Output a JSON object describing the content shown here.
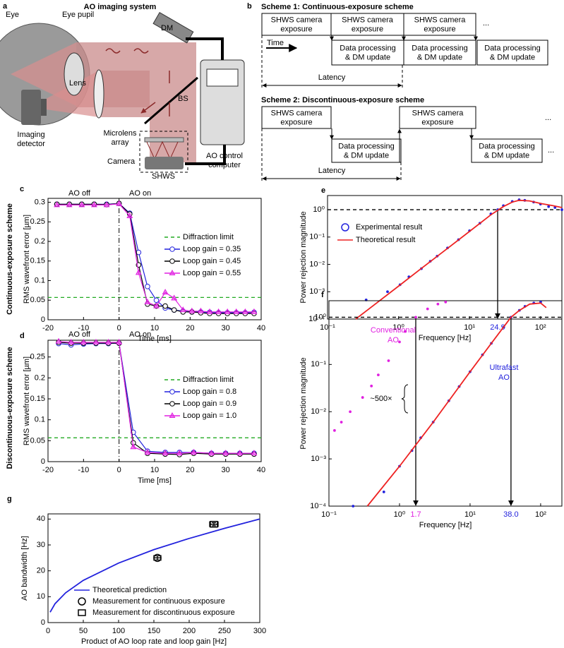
{
  "panel_a": {
    "letter": "a",
    "title": "AO imaging system",
    "eye": "Eye",
    "eye_pupil": "Eye pupil",
    "dm": "DM",
    "lens": "Lens",
    "bs": "BS",
    "detector": [
      "Imaging",
      "detector"
    ],
    "microlens": [
      "Microlens",
      "array"
    ],
    "camera": "Camera",
    "shws": "SHWS",
    "computer": [
      "AO control",
      "computer"
    ]
  },
  "panel_b": {
    "letter": "b",
    "time": "Time",
    "scheme1": {
      "title": "Scheme 1: Continuous-exposure scheme",
      "exposures": [
        [
          "SHWS camera",
          "exposure"
        ],
        [
          "SHWS camera",
          "exposure"
        ],
        [
          "SHWS camera",
          "exposure"
        ]
      ],
      "processing": [
        [
          "Data processing",
          "& DM update"
        ],
        [
          "Data processing",
          "& DM update"
        ],
        [
          "Data processing",
          "& DM update"
        ]
      ],
      "ellipsis": [
        "..."
      ],
      "latency": "Latency"
    },
    "scheme2": {
      "title": "Scheme 2: Discontinuous-exposure scheme",
      "exposures": [
        [
          "SHWS camera",
          "exposure"
        ],
        [
          "SHWS camera",
          "exposure"
        ]
      ],
      "processing": [
        [
          "Data processing",
          "& DM update"
        ],
        [
          "Data processing",
          "& DM update"
        ]
      ],
      "ellipsis": [
        "...",
        "..."
      ],
      "latency": "Latency"
    }
  },
  "row_labels": [
    "Continuous-exposure scheme",
    "Discontinuous-exposure scheme"
  ],
  "chart_data": [
    {
      "type": "line",
      "panel": "c",
      "xlabel": "Time [ms]",
      "ylabel": "RMS wavefront error [µm]",
      "xlim": [
        -20,
        40
      ],
      "xticks": [
        -20,
        -10,
        0,
        10,
        20,
        30,
        40
      ],
      "ylim": [
        0,
        0.31
      ],
      "yticks": [
        0,
        0.05,
        0.1,
        0.15,
        0.2,
        0.25,
        0.3
      ],
      "annotations": [
        {
          "text": [
            "AO off"
          ],
          "color": "#000000"
        },
        {
          "text": [
            "AO on"
          ],
          "color": "#000000"
        }
      ],
      "hlines": [
        {
          "name": "Diffraction limit",
          "value": 0.057,
          "color": "#22aa22",
          "style": "dashed"
        }
      ],
      "vlines": [
        {
          "value": 0,
          "style": "dashdot"
        }
      ],
      "x": [
        -17.5,
        -14,
        -10.5,
        -7,
        -3.5,
        0,
        3,
        5.5,
        8,
        10.5,
        13,
        15.5,
        18,
        20.5,
        23,
        25.5,
        28,
        30.5,
        33,
        35.5,
        38
      ],
      "series": [
        {
          "name": "Loop gain = 0.35",
          "color": "#2222dd",
          "marker": "circle-open",
          "values": [
            0.295,
            0.295,
            0.295,
            0.295,
            0.295,
            0.297,
            0.272,
            0.172,
            0.085,
            0.05,
            0.03,
            0.025,
            0.022,
            0.02,
            0.02,
            0.019,
            0.018,
            0.018,
            0.018,
            0.018,
            0.019
          ]
        },
        {
          "name": "Loop gain = 0.45",
          "color": "#000000",
          "marker": "circle-open",
          "values": [
            0.295,
            0.295,
            0.295,
            0.295,
            0.294,
            0.297,
            0.27,
            0.14,
            0.04,
            0.035,
            0.035,
            0.025,
            0.02,
            0.02,
            0.018,
            0.016,
            0.016,
            0.016,
            0.016,
            0.016,
            0.016
          ]
        },
        {
          "name": "Loop gain = 0.55",
          "color": "#e020e0",
          "marker": "triangle",
          "values": [
            0.293,
            0.293,
            0.293,
            0.293,
            0.293,
            0.296,
            0.265,
            0.12,
            0.045,
            0.035,
            0.07,
            0.055,
            0.025,
            0.022,
            0.022,
            0.02,
            0.02,
            0.02,
            0.02,
            0.02,
            0.02
          ]
        }
      ]
    },
    {
      "type": "line",
      "panel": "d",
      "xlabel": "Time [ms]",
      "ylabel": "RMS wavefront error [µm]",
      "xlim": [
        -20,
        40
      ],
      "xticks": [
        -20,
        -10,
        0,
        10,
        20,
        30,
        40
      ],
      "ylim": [
        0,
        0.29
      ],
      "yticks": [
        0,
        0.05,
        0.1,
        0.15,
        0.2,
        0.25
      ],
      "annotations": [
        {
          "text": [
            "AO off"
          ],
          "color": "#000000"
        },
        {
          "text": [
            "AO on"
          ],
          "color": "#000000"
        }
      ],
      "hlines": [
        {
          "name": "Diffraction limit",
          "value": 0.057,
          "color": "#22aa22",
          "style": "dashed"
        }
      ],
      "vlines": [
        {
          "value": 0,
          "style": "dashdot"
        }
      ],
      "x": [
        -17,
        -13.5,
        -10,
        -6.5,
        -3,
        0,
        4,
        8,
        13,
        17,
        21,
        26,
        30,
        34,
        38
      ],
      "series": [
        {
          "name": "Loop gain = 0.8",
          "color": "#2222dd",
          "marker": "circle-open",
          "values": [
            0.282,
            0.279,
            0.281,
            0.282,
            0.282,
            0.283,
            0.07,
            0.025,
            0.022,
            0.022,
            0.022,
            0.02,
            0.02,
            0.02,
            0.02
          ]
        },
        {
          "name": "Loop gain = 0.9",
          "color": "#000000",
          "marker": "circle-open",
          "values": [
            0.285,
            0.283,
            0.283,
            0.283,
            0.283,
            0.283,
            0.045,
            0.02,
            0.018,
            0.017,
            0.02,
            0.018,
            0.018,
            0.018,
            0.018
          ]
        },
        {
          "name": "Loop gain = 1.0",
          "color": "#e020e0",
          "marker": "triangle",
          "values": [
            0.287,
            0.285,
            0.285,
            0.285,
            0.285,
            0.285,
            0.035,
            0.022,
            0.02,
            0.02,
            0.022,
            0.02,
            0.02,
            0.02,
            0.02
          ]
        }
      ]
    },
    {
      "type": "scatter",
      "panel": "e",
      "xlabel": "Frequency [Hz]",
      "ylabel": "Power rejection magnitude",
      "xlog": true,
      "ylog": true,
      "xlim": [
        0.1,
        200
      ],
      "ylim": [
        0.0001,
        3.3
      ],
      "xticks": [
        {
          "value": 0.1,
          "label": "10⁻¹"
        },
        {
          "value": 1,
          "label": "10⁰"
        },
        {
          "value": 10,
          "label": "10¹"
        },
        {
          "value": 100,
          "label": "10²"
        }
      ],
      "yticks": [
        {
          "value": 0.0001,
          "label": "10⁻⁴"
        },
        {
          "value": 0.001,
          "label": "10⁻³"
        },
        {
          "value": 0.01,
          "label": "10⁻²"
        },
        {
          "value": 0.1,
          "label": "10⁻¹"
        },
        {
          "value": 1,
          "label": "10⁰"
        }
      ],
      "hlines": [
        {
          "value": 1,
          "color": "#000000",
          "style": "dashed"
        }
      ],
      "arrows": [
        {
          "value": 24.9,
          "color": "#2222dd"
        }
      ],
      "series": [
        {
          "name": "Experimental result",
          "color": "#2222dd",
          "marker": "dot",
          "x": [
            0.35,
            0.7,
            1.05,
            1.4,
            2.1,
            2.8,
            3.5,
            4.9,
            7,
            10,
            14,
            20,
            25,
            30,
            40,
            50,
            60,
            80,
            100,
            130,
            160,
            200
          ],
          "values": [
            0.0005,
            0.001,
            0.0018,
            0.0035,
            0.007,
            0.013,
            0.02,
            0.04,
            0.08,
            0.17,
            0.32,
            0.7,
            1.0,
            1.4,
            2.0,
            2.3,
            2.2,
            1.9,
            1.6,
            1.3,
            1.2,
            1.0
          ]
        },
        {
          "name": "Theoretical result",
          "color": "#ee2222",
          "line": true,
          "x": [
            0.25,
            0.5,
            1,
            2,
            5,
            10,
            20,
            30,
            40,
            50,
            70,
            100,
            150,
            200
          ],
          "values": [
            0.0001,
            0.0004,
            0.0016,
            0.0065,
            0.04,
            0.16,
            0.65,
            1.3,
            1.9,
            2.2,
            2.1,
            1.7,
            1.4,
            1.2
          ]
        }
      ]
    },
    {
      "type": "scatter",
      "panel": "f",
      "xlabel": "Frequency [Hz]",
      "ylabel": "Power rejection magnitude",
      "xlog": true,
      "ylog": true,
      "xlim": [
        0.1,
        200
      ],
      "ylim": [
        0.0001,
        2.24
      ],
      "xticks": [
        {
          "value": 0.1,
          "label": "10⁻¹"
        },
        {
          "value": 1,
          "label": "10⁰"
        },
        {
          "value": 10,
          "label": "10¹"
        },
        {
          "value": 100,
          "label": "10²"
        }
      ],
      "yticks": [
        {
          "value": 0.0001,
          "label": "10⁻⁴"
        },
        {
          "value": 0.001,
          "label": "10⁻³"
        },
        {
          "value": 0.01,
          "label": "10⁻²"
        },
        {
          "value": 0.1,
          "label": "10⁻¹"
        },
        {
          "value": 1,
          "label": "10⁰"
        }
      ],
      "hlines": [
        {
          "value": 1,
          "color": "#000000",
          "style": "dashed"
        }
      ],
      "arrows": [
        {
          "value": 1.7,
          "color": "#e020e0"
        },
        {
          "value": 38,
          "label": "38.0",
          "color": "#2222dd"
        }
      ],
      "annotations": [
        {
          "text": [
            "Conventional",
            "AO"
          ],
          "color": "#e020e0"
        },
        {
          "text": [
            "Ultrafast",
            "AO"
          ],
          "color": "#2222dd"
        },
        {
          "text": [
            "~500×"
          ],
          "color": "#000000"
        }
      ],
      "series": [
        {
          "color": "#e020e0",
          "marker": "dot",
          "x": [
            0.12,
            0.15,
            0.2,
            0.3,
            0.4,
            0.5,
            0.7,
            1,
            1.2,
            1.7,
            2.5,
            3.5,
            4.5
          ],
          "values": [
            0.004,
            0.006,
            0.01,
            0.02,
            0.035,
            0.06,
            0.12,
            0.3,
            0.5,
            1.0,
            1.5,
            1.9,
            2.1
          ]
        },
        {
          "color": "#2222dd",
          "marker": "dot",
          "x": [
            0.22,
            0.6,
            1,
            1.5,
            2,
            3,
            5,
            7,
            10,
            15,
            20,
            30,
            38,
            50,
            60,
            80,
            100
          ],
          "values": [
            0.0001,
            0.0002,
            0.0007,
            0.0015,
            0.0028,
            0.006,
            0.017,
            0.034,
            0.07,
            0.16,
            0.28,
            0.62,
            1.0,
            1.4,
            1.7,
            2.0,
            2.1
          ]
        },
        {
          "color": "#ee2222",
          "line": true,
          "x": [
            0.35,
            1,
            3,
            10,
            20,
            38,
            50,
            70,
            100,
            120
          ],
          "values": [
            0.0001,
            0.0007,
            0.006,
            0.07,
            0.28,
            1.0,
            1.4,
            1.9,
            2.0,
            1.6
          ]
        }
      ]
    },
    {
      "type": "line",
      "panel": "g",
      "xlabel": "Product of AO loop rate and loop gain [Hz]",
      "ylabel": "AO bandwidth [Hz]",
      "xlim": [
        0,
        300
      ],
      "xticks": [
        0,
        50,
        100,
        150,
        200,
        250,
        300
      ],
      "ylim": [
        0,
        42
      ],
      "yticks": [
        0,
        10,
        20,
        30,
        40
      ],
      "series": [
        {
          "name": "Theoretical prediction",
          "color": "#2222dd",
          "line": true,
          "x": [
            3,
            10,
            25,
            50,
            100,
            150,
            200,
            250,
            300
          ],
          "values": [
            4,
            7.3,
            11.5,
            16.3,
            23,
            28.2,
            32.5,
            36.4,
            40
          ]
        },
        {
          "name": "Measurement for continuous exposure",
          "color": "#000000",
          "marker": "circle-big",
          "x": [
            155
          ],
          "values": [
            25
          ],
          "xerr": [
            5
          ],
          "yerr": [
            0.8
          ]
        },
        {
          "name": "Measurement for discontinuous exposure",
          "color": "#000000",
          "marker": "square-big",
          "x": [
            235
          ],
          "values": [
            38
          ],
          "xerr": [
            6
          ],
          "yerr": [
            0.6
          ]
        }
      ]
    }
  ]
}
